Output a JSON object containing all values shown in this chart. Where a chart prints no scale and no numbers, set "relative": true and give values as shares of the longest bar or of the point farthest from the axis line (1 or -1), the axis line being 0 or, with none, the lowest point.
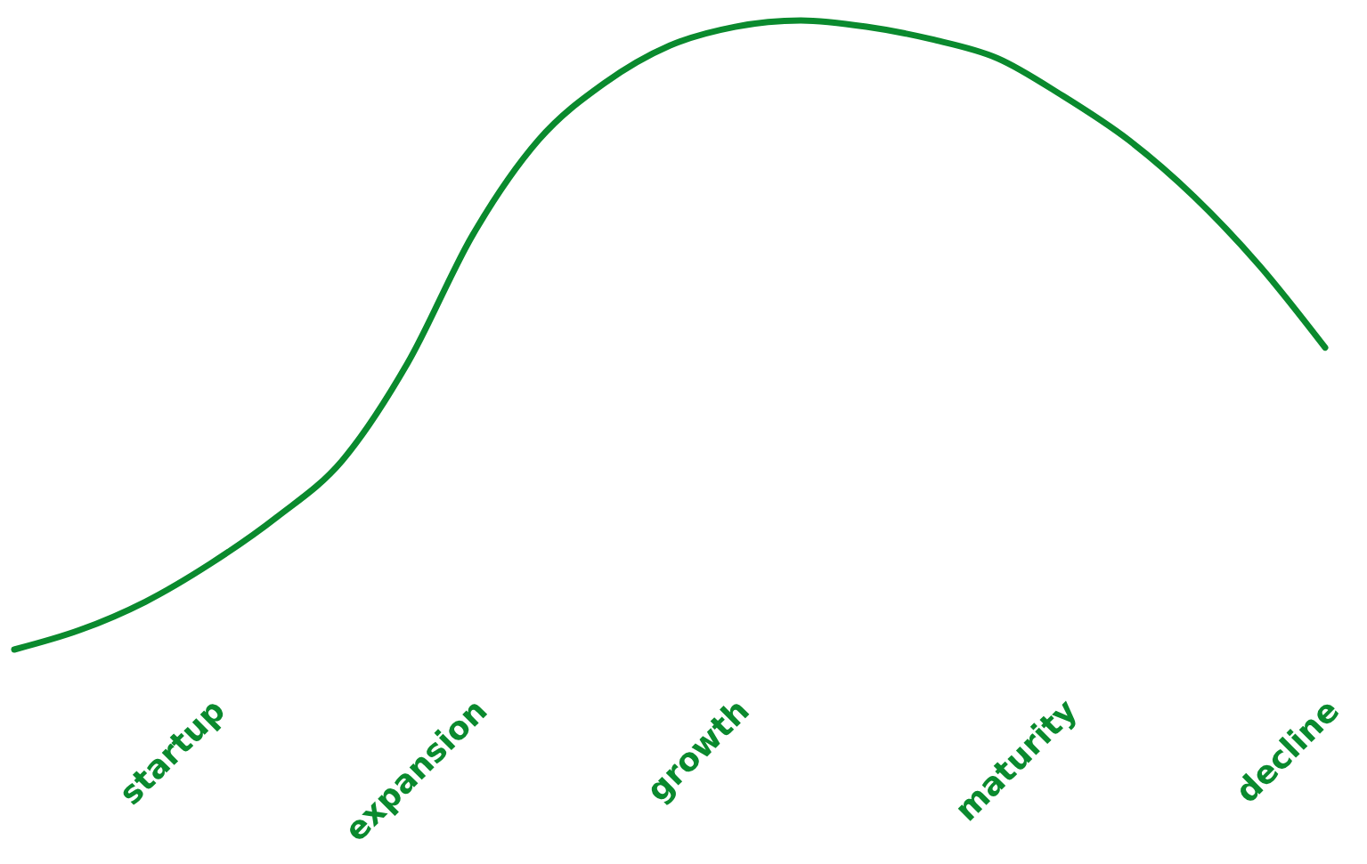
{
  "chart_data": {
    "type": "line",
    "relative": true,
    "categories": [
      null,
      null,
      null,
      "startup",
      null,
      null,
      null,
      "expansion",
      null,
      null,
      null,
      "growth",
      null,
      null,
      null,
      null,
      "maturity",
      null,
      null,
      null,
      "decline"
    ],
    "series": [
      {
        "color": "#0a8a2e",
        "values": [
          0,
          0.031,
          0.076,
          0.137,
          0.21,
          0.3,
          0.455,
          0.66,
          0.81,
          0.9,
          0.96,
          0.99,
          1,
          0.99,
          0.97,
          0.94,
          0.88,
          0.81,
          0.72,
          0.61,
          0.48
        ]
      }
    ]
  }
}
